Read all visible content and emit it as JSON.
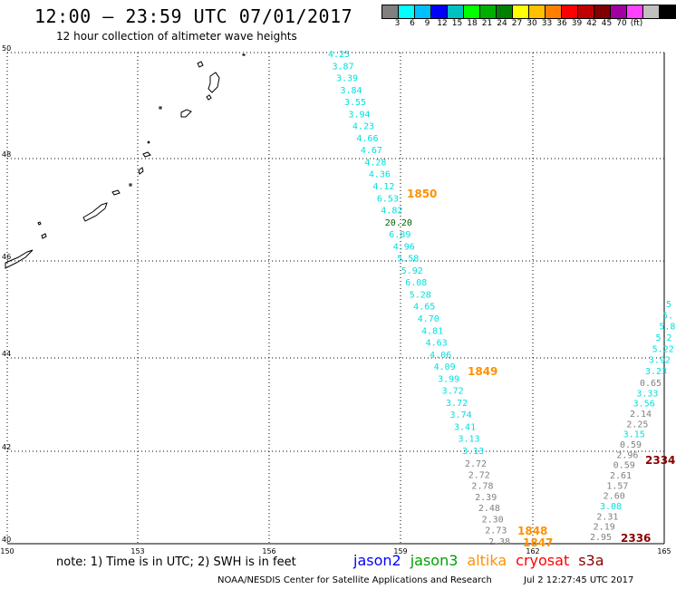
{
  "header": {
    "title": "12:00 – 23:59 UTC 07/01/2017",
    "subtitle": "12 hour collection of altimeter wave heights"
  },
  "colorbar": {
    "colors": [
      "#808080",
      "#00ffff",
      "#00bfff",
      "#0000ff",
      "#00c0c0",
      "#00ff00",
      "#00b000",
      "#008000",
      "#ffff00",
      "#ffc000",
      "#ff8000",
      "#ff0000",
      "#c00000",
      "#800000",
      "#a000a0",
      "#ff40ff",
      "#c0c0c0",
      "#000000"
    ],
    "labels": [
      "3",
      "6",
      "9",
      "12",
      "15",
      "18",
      "21",
      "24",
      "27",
      "30",
      "33",
      "36",
      "39",
      "42",
      "45",
      "70",
      "(ft)"
    ]
  },
  "axes": {
    "lon_ticks": [
      "150",
      "153",
      "156",
      "159",
      "162",
      "165"
    ],
    "lat_ticks": [
      "40",
      "42",
      "44",
      "46",
      "48",
      "50"
    ]
  },
  "tracks": {
    "jason3_color": "#00e0e0",
    "gray_color": "#808080",
    "orange_color": "#ff9000",
    "darkred_color": "#8b0000",
    "green_color": "#006400",
    "track1": [
      "4.25",
      "3.87",
      "3.39",
      "3.84",
      "3.55",
      "3.94",
      "4.23",
      "4.66",
      "4.67",
      "4.28",
      "4.36",
      "4.12",
      "6.53",
      "4.82",
      "20.20",
      "6.89",
      "4.96",
      "5.58",
      "5.92",
      "6.08",
      "5.28",
      "4.65",
      "4.70",
      "4.81",
      "4.63",
      "4.06",
      "4.09",
      "3.99",
      "3.72",
      "3.72",
      "3.74",
      "3.41",
      "3.13",
      "3.13"
    ],
    "track1_gray": [
      "2.72",
      "2.72",
      "2.78",
      "2.39",
      "2.48",
      "2.30",
      "2.73",
      "2.38"
    ],
    "track2_cyan_top": [
      "5",
      "5.",
      "5.8",
      "5.2",
      "5.22",
      "3.92",
      "3.23"
    ],
    "track2_mixed": [
      {
        "v": "0.65",
        "c": "gray"
      },
      {
        "v": "3.33",
        "c": "cyan"
      },
      {
        "v": "3.56",
        "c": "cyan"
      },
      {
        "v": "2.14",
        "c": "gray"
      },
      {
        "v": "2.25",
        "c": "gray"
      },
      {
        "v": "3.15",
        "c": "cyan"
      },
      {
        "v": "0.59",
        "c": "gray"
      },
      {
        "v": "2.96",
        "c": "gray"
      },
      {
        "v": "0.59",
        "c": "gray"
      },
      {
        "v": "2.61",
        "c": "gray"
      },
      {
        "v": "1.57",
        "c": "gray"
      },
      {
        "v": "2.60",
        "c": "gray"
      },
      {
        "v": "3.08",
        "c": "cyan"
      },
      {
        "v": "2.31",
        "c": "gray"
      },
      {
        "v": "2.19",
        "c": "gray"
      },
      {
        "v": "2.95",
        "c": "gray"
      }
    ],
    "time_labels": {
      "t1850": "1850",
      "t1849": "1849",
      "t1848": "1848",
      "t1847": "1847",
      "t2334": "2334",
      "t2336": "2336"
    }
  },
  "note": "note: 1) Time is in UTC; 2) SWH is in feet",
  "satellites": [
    {
      "name": "jason2",
      "color": "#0000ff"
    },
    {
      "name": "jason3",
      "color": "#00a000"
    },
    {
      "name": "altika",
      "color": "#ff9000"
    },
    {
      "name": "cryosat",
      "color": "#ff0000"
    },
    {
      "name": "s3a",
      "color": "#8b0000"
    }
  ],
  "footer": {
    "credit": "NOAA/NESDIS Center for Satellite Applications and Research",
    "timestamp": "Jul  2 12:27:45 UTC 2017"
  }
}
